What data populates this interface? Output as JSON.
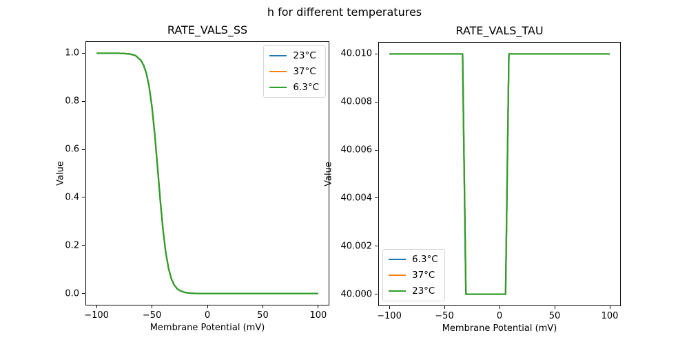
{
  "figure": {
    "title": "h for different temperatures"
  },
  "chart_data": [
    {
      "type": "line",
      "title": "RATE_VALS_SS",
      "xlabel": "Membrane Potential (mV)",
      "ylabel": "Value",
      "xlim": [
        -110,
        110
      ],
      "ylim": [
        -0.05,
        1.05
      ],
      "xticks": [
        -100,
        -50,
        0,
        50,
        100
      ],
      "xtick_labels": [
        "−100",
        "−50",
        "0",
        "50",
        "100"
      ],
      "yticks": [
        0.0,
        0.2,
        0.4,
        0.6,
        0.8,
        1.0
      ],
      "ytick_labels": [
        "0.0",
        "0.2",
        "0.4",
        "0.6",
        "0.8",
        "1.0"
      ],
      "grid": false,
      "legend": {
        "loc": "upper right",
        "entries": [
          {
            "label": "23°C",
            "color": "#1f77b4"
          },
          {
            "label": "37°C",
            "color": "#ff7f0e"
          },
          {
            "label": "6.3°C",
            "color": "#2ca02c"
          }
        ]
      },
      "series": [
        {
          "name": "23°C",
          "color": "#1f77b4",
          "x": [
            -100,
            -90,
            -80,
            -75,
            -70,
            -65,
            -60,
            -57.5,
            -55,
            -52.5,
            -50,
            -47.5,
            -45,
            -42.5,
            -40,
            -37.5,
            -35,
            -32.5,
            -30,
            -27.5,
            -25,
            -20,
            -15,
            -10,
            -5,
            0,
            10,
            25,
            50,
            75,
            100
          ],
          "y": [
            1.0,
            1.0,
            1.0,
            0.999,
            0.997,
            0.991,
            0.971,
            0.95,
            0.916,
            0.86,
            0.777,
            0.664,
            0.528,
            0.388,
            0.264,
            0.169,
            0.104,
            0.061,
            0.036,
            0.021,
            0.012,
            0.004,
            0.001,
            0.0,
            0.0,
            0.0,
            0.0,
            0.0,
            0.0,
            0.0,
            0.0
          ]
        },
        {
          "name": "37°C",
          "color": "#ff7f0e",
          "x": [
            -100,
            -90,
            -80,
            -75,
            -70,
            -65,
            -60,
            -57.5,
            -55,
            -52.5,
            -50,
            -47.5,
            -45,
            -42.5,
            -40,
            -37.5,
            -35,
            -32.5,
            -30,
            -27.5,
            -25,
            -20,
            -15,
            -10,
            -5,
            0,
            10,
            25,
            50,
            75,
            100
          ],
          "y": [
            1.0,
            1.0,
            1.0,
            0.999,
            0.997,
            0.991,
            0.971,
            0.95,
            0.916,
            0.86,
            0.777,
            0.664,
            0.528,
            0.388,
            0.264,
            0.169,
            0.104,
            0.061,
            0.036,
            0.021,
            0.012,
            0.004,
            0.001,
            0.0,
            0.0,
            0.0,
            0.0,
            0.0,
            0.0,
            0.0,
            0.0
          ]
        },
        {
          "name": "6.3°C",
          "color": "#2ca02c",
          "x": [
            -100,
            -90,
            -80,
            -75,
            -70,
            -65,
            -60,
            -57.5,
            -55,
            -52.5,
            -50,
            -47.5,
            -45,
            -42.5,
            -40,
            -37.5,
            -35,
            -32.5,
            -30,
            -27.5,
            -25,
            -20,
            -15,
            -10,
            -5,
            0,
            10,
            25,
            50,
            75,
            100
          ],
          "y": [
            1.0,
            1.0,
            1.0,
            0.999,
            0.997,
            0.991,
            0.971,
            0.95,
            0.916,
            0.86,
            0.777,
            0.664,
            0.528,
            0.388,
            0.264,
            0.169,
            0.104,
            0.061,
            0.036,
            0.021,
            0.012,
            0.004,
            0.001,
            0.0,
            0.0,
            0.0,
            0.0,
            0.0,
            0.0,
            0.0,
            0.0
          ]
        }
      ]
    },
    {
      "type": "line",
      "title": "RATE_VALS_TAU",
      "xlabel": "Membrane Potential (mV)",
      "ylabel": "Value",
      "xlim": [
        -110,
        110
      ],
      "ylim": [
        39.9995,
        40.0105
      ],
      "xticks": [
        -100,
        -50,
        0,
        50,
        100
      ],
      "xtick_labels": [
        "−100",
        "−50",
        "0",
        "50",
        "100"
      ],
      "yticks": [
        40.0,
        40.002,
        40.004,
        40.006,
        40.008,
        40.01
      ],
      "ytick_labels": [
        "40.000",
        "40.002",
        "40.004",
        "40.006",
        "40.008",
        "40.010"
      ],
      "grid": false,
      "legend": {
        "loc": "lower left",
        "entries": [
          {
            "label": "6.3°C",
            "color": "#1f77b4"
          },
          {
            "label": "37°C",
            "color": "#ff7f0e"
          },
          {
            "label": "23°C",
            "color": "#2ca02c"
          }
        ]
      },
      "series": [
        {
          "name": "6.3°C",
          "color": "#1f77b4",
          "x": [
            -100,
            -33.5,
            -30.5,
            5.5,
            8.5,
            100
          ],
          "y": [
            40.01,
            40.01,
            40.0,
            40.0,
            40.01,
            40.01
          ]
        },
        {
          "name": "37°C",
          "color": "#ff7f0e",
          "x": [
            -100,
            -33.5,
            -30.5,
            5.5,
            8.5,
            100
          ],
          "y": [
            40.01,
            40.01,
            40.0,
            40.0,
            40.01,
            40.01
          ]
        },
        {
          "name": "23°C",
          "color": "#2ca02c",
          "x": [
            -100,
            -33.5,
            -30.5,
            5.5,
            8.5,
            100
          ],
          "y": [
            40.01,
            40.01,
            40.0,
            40.0,
            40.01,
            40.01
          ]
        }
      ]
    }
  ]
}
